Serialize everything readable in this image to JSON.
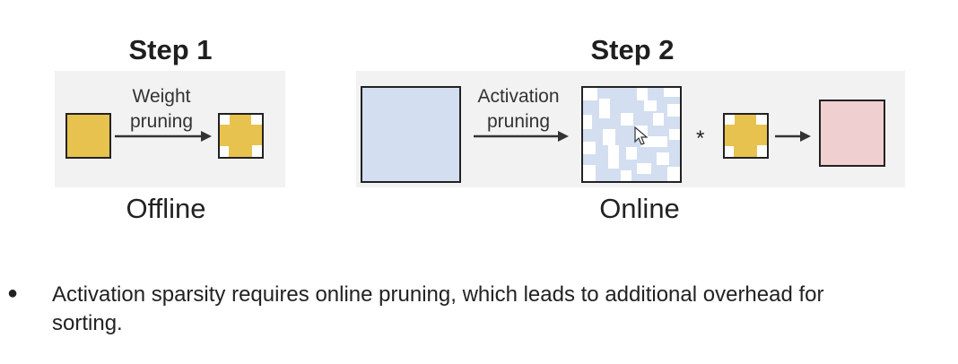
{
  "step1": {
    "title": "Step 1",
    "arrow_label_line1": "Weight",
    "arrow_label_line2": "pruning",
    "caption": "Offline"
  },
  "step2": {
    "title": "Step 2",
    "arrow_label_line1": "Activation",
    "arrow_label_line2": "pruning",
    "caption": "Online",
    "operator": "*"
  },
  "colors": {
    "weight": "#e8c24f",
    "activation": "#d3dff0",
    "output": "#efcfd0",
    "panel": "#f2f2f2"
  },
  "bullet": {
    "marker": "●",
    "text_line1": "Activation sparsity requires online pruning, which leads to additional overhead for",
    "text_line2": "sorting."
  }
}
